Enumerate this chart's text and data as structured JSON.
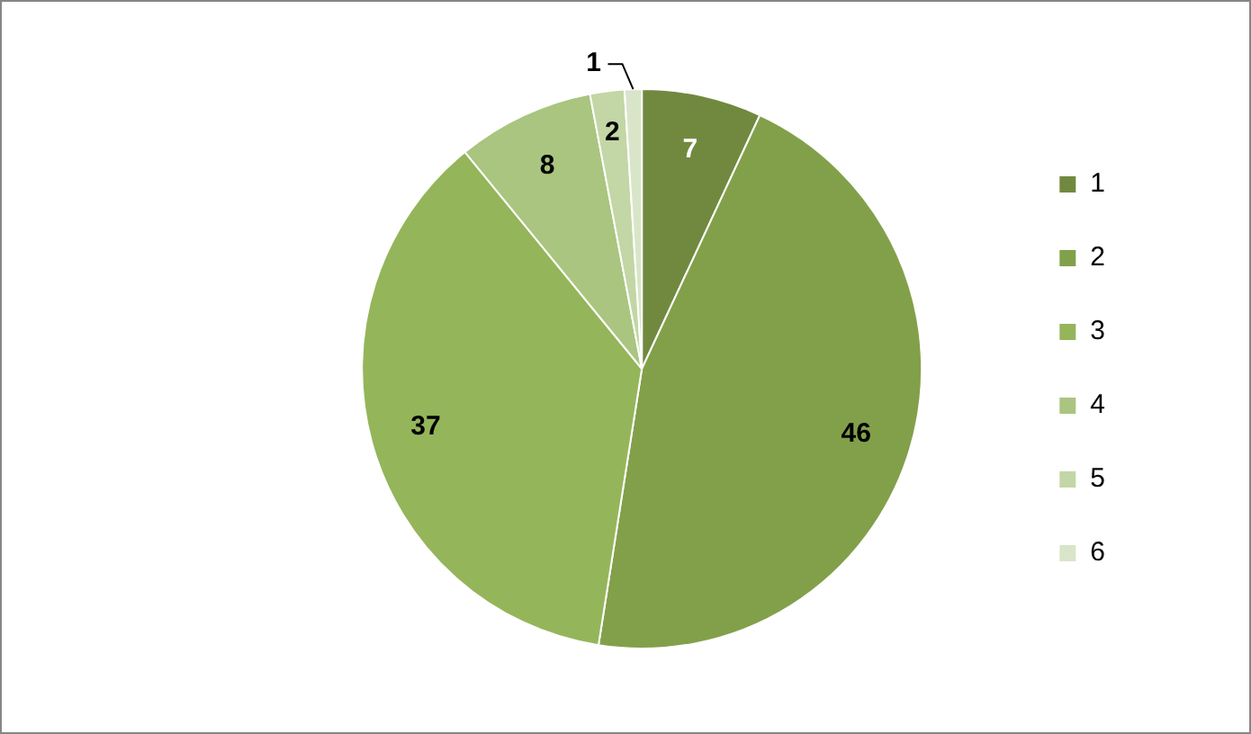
{
  "chart_data": {
    "type": "pie",
    "categories": [
      "1",
      "2",
      "3",
      "4",
      "5",
      "6"
    ],
    "values": [
      7,
      46,
      37,
      8,
      2,
      1
    ],
    "colors": [
      "#71893f",
      "#82a04a",
      "#95b55a",
      "#a9c57f",
      "#c3d6a5",
      "#d9e5c8"
    ],
    "data_labels": true,
    "legend": "right"
  }
}
